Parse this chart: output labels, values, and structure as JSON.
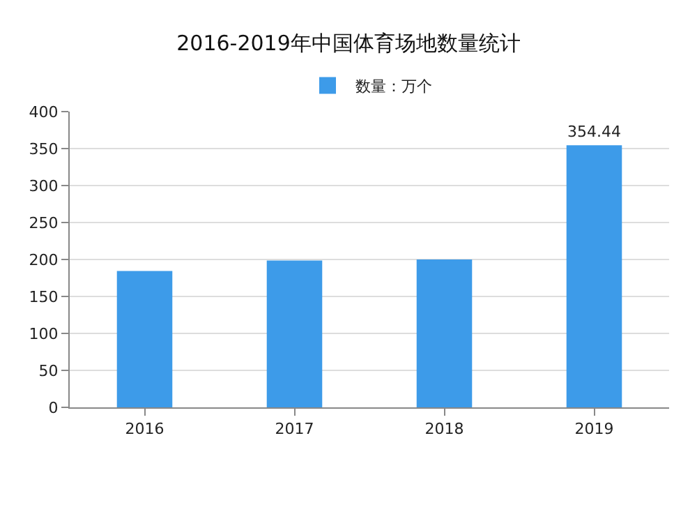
{
  "chart_data": {
    "type": "bar",
    "title": "2016-2019年中国体育场地数量统计",
    "categories": [
      "2016",
      "2017",
      "2018",
      "2019"
    ],
    "series": [
      {
        "name": "数量：万个",
        "color": "#3d9be9",
        "values": [
          184.5,
          198.5,
          200,
          354.44
        ],
        "value_labels": [
          null,
          null,
          null,
          "354.44"
        ]
      }
    ],
    "ylim": [
      0,
      400
    ],
    "yticks": [
      0,
      50,
      100,
      150,
      200,
      250,
      300,
      350,
      400
    ],
    "grid": "y",
    "legend": "top"
  }
}
